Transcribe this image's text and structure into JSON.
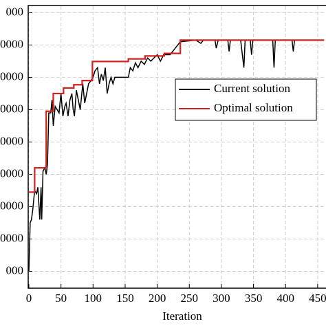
{
  "chart_data": {
    "type": "line",
    "xlabel": "Iteration",
    "xlim": [
      0,
      463
    ],
    "xticks": [
      0,
      50,
      100,
      150,
      200,
      250,
      300,
      350,
      400,
      450
    ],
    "ylim": [
      0.5,
      9.2
    ],
    "yticks": [
      {
        "value": 1,
        "label": "000"
      },
      {
        "value": 2,
        "label": "0000"
      },
      {
        "value": 3,
        "label": "0000"
      },
      {
        "value": 4,
        "label": "0000"
      },
      {
        "value": 5,
        "label": "0000"
      },
      {
        "value": 6,
        "label": "0000"
      },
      {
        "value": 7,
        "label": "0000"
      },
      {
        "value": 8,
        "label": "0000"
      },
      {
        "value": 9,
        "label": "000"
      }
    ],
    "grid": true,
    "legend": "upper right",
    "series": [
      {
        "name": "Current solution",
        "color": "#000000",
        "step": false,
        "x": [
          0,
          2,
          4,
          6,
          9,
          12,
          14,
          17,
          19,
          20,
          22,
          25,
          27,
          29,
          31,
          34,
          36,
          38,
          41,
          44,
          47,
          50,
          53,
          56,
          58,
          61,
          64,
          67,
          69,
          71,
          74,
          77,
          80,
          84,
          87,
          90,
          93,
          97,
          100,
          103,
          107,
          110,
          113,
          116,
          119,
          122,
          125,
          128,
          131,
          134,
          140,
          155,
          158,
          162,
          166,
          170,
          175,
          180,
          185,
          190,
          200,
          205,
          210,
          220,
          236,
          260,
          268,
          272,
          290,
          292,
          295,
          310,
          312,
          314,
          330,
          335,
          337,
          345,
          347,
          349,
          380,
          382,
          384,
          410,
          412,
          414,
          420,
          460
        ],
        "values": [
          1.0,
          2.5,
          2.6,
          2.9,
          3.5,
          3.4,
          3.6,
          2.6,
          3.6,
          2.6,
          4.1,
          4.2,
          4.0,
          4.3,
          5.9,
          5.9,
          6.3,
          5.5,
          6.1,
          6.0,
          5.9,
          6.5,
          5.8,
          6.1,
          6.2,
          5.8,
          6.3,
          6.5,
          6.0,
          5.8,
          6.6,
          6.3,
          6.0,
          6.8,
          6.2,
          6.5,
          6.8,
          6.9,
          7.0,
          7.2,
          7.3,
          6.8,
          7.1,
          6.9,
          7.3,
          6.5,
          6.8,
          7.0,
          6.8,
          7.0,
          7.0,
          7.0,
          7.3,
          7.2,
          7.45,
          7.3,
          7.5,
          7.4,
          7.6,
          7.5,
          7.7,
          7.5,
          7.7,
          7.7,
          8.1,
          8.15,
          8.05,
          8.15,
          8.15,
          7.9,
          8.15,
          8.15,
          7.8,
          8.15,
          8.15,
          7.3,
          8.15,
          8.15,
          7.7,
          8.15,
          8.15,
          7.3,
          8.15,
          8.15,
          7.8,
          8.15,
          8.15,
          8.15
        ]
      },
      {
        "name": "Optimal solution",
        "color": "#d42020",
        "step": true,
        "x": [
          0,
          9,
          27,
          38,
          54,
          70,
          83,
          99,
          155,
          181,
          211,
          236,
          460
        ],
        "values": [
          3.45,
          4.2,
          5.95,
          6.5,
          6.67,
          6.77,
          6.9,
          7.49,
          7.57,
          7.66,
          7.74,
          8.15,
          8.15
        ]
      }
    ]
  }
}
